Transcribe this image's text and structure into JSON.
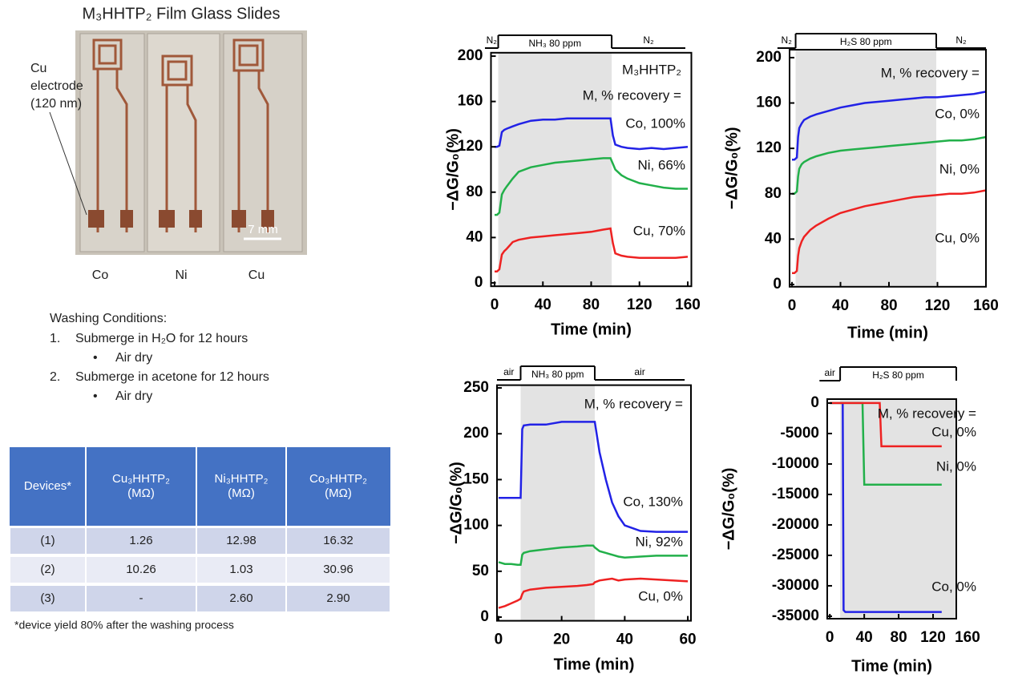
{
  "photo": {
    "title": "M₃HHTP₂ Film Glass Slides",
    "callout": [
      "Cu",
      "electrode",
      "(120 nm)"
    ],
    "scale_bar": "7 mm",
    "labels": [
      "Co",
      "Ni",
      "Cu"
    ]
  },
  "washing": {
    "title": "Washing Conditions:",
    "steps": [
      {
        "number": "1.",
        "text": "Submerge in H₂O for 12 hours",
        "sub": "Air dry"
      },
      {
        "number": "2.",
        "text": "Submerge in acetone for 12 hours",
        "sub": "Air dry"
      }
    ]
  },
  "table": {
    "header": [
      [
        "Devices*"
      ],
      [
        "Cu₃HHTP₂",
        "(MΩ)"
      ],
      [
        "Ni₃HHTP₂",
        "(MΩ)"
      ],
      [
        "Co₃HHTP₂",
        "(MΩ)"
      ]
    ],
    "rows": [
      [
        "(1)",
        "1.26",
        "12.98",
        "16.32"
      ],
      [
        "(2)",
        "10.26",
        "1.03",
        "30.96"
      ],
      [
        "(3)",
        "-",
        "2.60",
        "2.90"
      ]
    ],
    "footnote": "*device yield 80% after the washing process"
  },
  "chart_data": [
    {
      "type": "line",
      "x_label": "Time (min)",
      "y_label": "−ΔG/G₀(%)",
      "annotations": [
        "M₃HHTP₂",
        "M, % recovery ="
      ],
      "phases": [
        {
          "label": "N₂",
          "start": -8,
          "end": 3
        },
        {
          "label": "NH₃ 80 ppm",
          "start": 3,
          "end": 97
        },
        {
          "label": "N₂",
          "start": 97,
          "end": 158
        }
      ],
      "shaded_phase": 1,
      "shade_color": "#e3e3e3",
      "xlim": [
        -3,
        163
      ],
      "ylim": [
        -3,
        203
      ],
      "xticks": [
        0,
        40,
        80,
        120,
        160
      ],
      "yticks": [
        0,
        40,
        80,
        120,
        160,
        200
      ],
      "x": [
        0,
        2,
        4,
        6,
        8,
        10,
        15,
        20,
        30,
        40,
        50,
        60,
        70,
        80,
        90,
        96,
        98,
        100,
        105,
        110,
        120,
        130,
        140,
        150,
        160
      ],
      "series": [
        {
          "name": "Co, 100%",
          "color": "#2222e6",
          "values": [
            120,
            120,
            121,
            133,
            135,
            136,
            138,
            140,
            143,
            144,
            144,
            145,
            145,
            145,
            145,
            145,
            130,
            122,
            120,
            119,
            118,
            119,
            118,
            119,
            120
          ]
        },
        {
          "name": "Ni, 66%",
          "color": "#22b04a",
          "values": [
            60,
            60,
            62,
            78,
            82,
            85,
            92,
            98,
            102,
            104,
            106,
            107,
            108,
            109,
            110,
            110,
            105,
            100,
            95,
            92,
            88,
            86,
            84,
            83,
            83
          ]
        },
        {
          "name": "Cu, 70%",
          "color": "#ee2222",
          "values": [
            10,
            10,
            12,
            25,
            28,
            30,
            36,
            38,
            40,
            41,
            42,
            43,
            44,
            45,
            47,
            48,
            35,
            26,
            24,
            23,
            22,
            22,
            22,
            22,
            23
          ]
        }
      ]
    },
    {
      "type": "line",
      "x_label": "Time (min)",
      "y_label": "−ΔG/G₀(%)",
      "annotations": [
        "M, % recovery ="
      ],
      "phases": [
        {
          "label": "N₂",
          "start": -12,
          "end": 3
        },
        {
          "label": "H₂S 80 ppm",
          "start": 3,
          "end": 119
        },
        {
          "label": "N₂",
          "start": 119,
          "end": 160
        }
      ],
      "shaded_phase": 1,
      "shade_color": "#e3e3e3",
      "xlim": [
        -2,
        160
      ],
      "ylim": [
        -2,
        207
      ],
      "xticks": [
        0,
        40,
        80,
        120,
        160
      ],
      "yticks": [
        0,
        40,
        80,
        120,
        160,
        200
      ],
      "x": [
        0,
        2,
        4,
        5,
        6,
        8,
        10,
        15,
        20,
        30,
        40,
        50,
        60,
        70,
        80,
        90,
        100,
        110,
        120,
        130,
        140,
        150,
        160
      ],
      "series": [
        {
          "name": "Co, 0%",
          "color": "#2222e6",
          "values": [
            110,
            110,
            112,
            130,
            138,
            142,
            145,
            148,
            150,
            153,
            156,
            158,
            160,
            161,
            162,
            163,
            164,
            165,
            165,
            166,
            167,
            168,
            170
          ]
        },
        {
          "name": "Ni, 0%",
          "color": "#22b04a",
          "values": [
            80,
            80,
            82,
            95,
            102,
            106,
            108,
            111,
            113,
            116,
            118,
            119,
            120,
            121,
            122,
            123,
            124,
            125,
            126,
            127,
            127,
            128,
            130
          ]
        },
        {
          "name": "Cu, 0%",
          "color": "#ee2222",
          "values": [
            10,
            10,
            12,
            25,
            32,
            38,
            42,
            48,
            52,
            58,
            63,
            66,
            69,
            71,
            73,
            75,
            77,
            78,
            79,
            80,
            80,
            81,
            83
          ]
        }
      ]
    },
    {
      "type": "line",
      "x_label": "Time (min)",
      "y_label": "−ΔG/G₀(%)",
      "annotations": [
        "M, % recovery ="
      ],
      "phases": [
        {
          "label": "air",
          "start": -0.5,
          "end": 7
        },
        {
          "label": "NH₃ 80 ppm",
          "start": 7,
          "end": 30.5
        },
        {
          "label": "air",
          "start": 30.5,
          "end": 59
        }
      ],
      "shaded_phase": 1,
      "shade_color": "#e3e3e3",
      "xlim": [
        -0.5,
        61
      ],
      "ylim": [
        -4,
        253
      ],
      "xticks": [
        0,
        20,
        40,
        60
      ],
      "yticks": [
        0,
        50,
        100,
        150,
        200,
        250
      ],
      "x": [
        0,
        2,
        4,
        6,
        7,
        7.5,
        8,
        10,
        15,
        20,
        25,
        28,
        30,
        30.5,
        32,
        34,
        36,
        38,
        40,
        45,
        50,
        55,
        60
      ],
      "series": [
        {
          "name": "Co, 130%",
          "color": "#2222e6",
          "values": [
            130,
            130,
            130,
            130,
            130,
            205,
            209,
            210,
            210,
            213,
            213,
            213,
            213,
            213,
            180,
            150,
            125,
            110,
            100,
            94,
            93,
            93,
            93
          ]
        },
        {
          "name": "Ni, 92%",
          "color": "#22b04a",
          "values": [
            60,
            58,
            58,
            57,
            57,
            68,
            70,
            72,
            74,
            76,
            77,
            78,
            78,
            76,
            72,
            70,
            68,
            66,
            65,
            66,
            67,
            67,
            67
          ]
        },
        {
          "name": "Cu, 0%",
          "color": "#ee2222",
          "values": [
            10,
            12,
            15,
            18,
            20,
            25,
            28,
            30,
            32,
            33,
            34,
            35,
            36,
            38,
            40,
            41,
            42,
            40,
            41,
            42,
            41,
            40,
            39
          ]
        }
      ]
    },
    {
      "type": "line",
      "x_label": "Time (min)",
      "y_label": "−ΔG/G₀(%)",
      "annotations": [
        "M, % recovery ="
      ],
      "phases": [
        {
          "label": "air",
          "start": -12,
          "end": 12
        },
        {
          "label": "H₂S 80 ppm",
          "start": 12,
          "end": 147
        }
      ],
      "shaded_phase": 1,
      "shade_color": "#e3e3e3",
      "xlim": [
        -3,
        147
      ],
      "ylim": [
        -35400,
        650
      ],
      "xticks": [
        0,
        40,
        80,
        120,
        160
      ],
      "yticks": [
        0,
        -5000,
        -10000,
        -15000,
        -20000,
        -25000,
        -30000,
        -35000
      ],
      "x": [
        0,
        10,
        14,
        15,
        16,
        18,
        20,
        30,
        35,
        38,
        40,
        50,
        55,
        58,
        60,
        80,
        100,
        120,
        130
      ],
      "series": [
        {
          "name": "Co, 0%",
          "color": "#2222e6",
          "values": [
            0,
            0,
            0,
            0,
            -34000,
            -34300,
            -34300,
            -34300,
            -34300,
            -34300,
            -34300,
            -34300,
            -34300,
            -34300,
            -34300,
            -34300,
            -34300,
            -34300,
            -34300
          ]
        },
        {
          "name": "Ni, 0%",
          "color": "#22b04a",
          "values": [
            0,
            0,
            0,
            0,
            0,
            0,
            0,
            0,
            0,
            0,
            -13400,
            -13400,
            -13400,
            -13400,
            -13400,
            -13400,
            -13400,
            -13400,
            -13400
          ]
        },
        {
          "name": "Cu, 0%",
          "color": "#ee2222",
          "values": [
            0,
            0,
            0,
            0,
            0,
            0,
            0,
            0,
            0,
            0,
            0,
            0,
            0,
            0,
            -7100,
            -7100,
            -7100,
            -7100,
            -7100
          ]
        }
      ]
    }
  ]
}
